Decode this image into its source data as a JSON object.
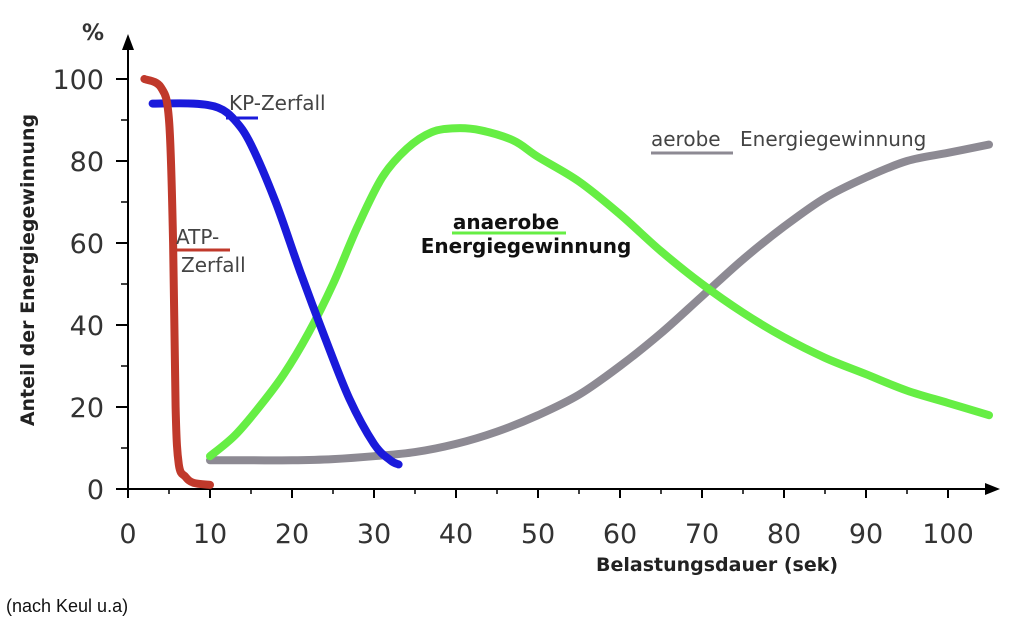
{
  "chart_data": {
    "type": "line",
    "xlabel": "Belastungsdauer (sek)",
    "ylabel": "Anteil der Energiegewinnung",
    "yunit": "%",
    "xlim": [
      0,
      105
    ],
    "ylim": [
      0,
      100
    ],
    "xticks": [
      0,
      10,
      20,
      30,
      40,
      50,
      60,
      70,
      80,
      90,
      100
    ],
    "yticks": [
      0,
      20,
      40,
      60,
      80,
      100
    ],
    "grid": false,
    "legend": "none",
    "series": [
      {
        "key": "atp",
        "color": "#c0392b",
        "x": [
          2,
          4,
          5,
          5.5,
          5.8,
          6.2,
          7,
          8,
          10
        ],
        "y": [
          100,
          98,
          90,
          60,
          20,
          6,
          3,
          1.5,
          1
        ]
      },
      {
        "key": "kp",
        "color": "#1a1adb",
        "x": [
          3,
          8,
          11,
          13,
          15,
          18,
          21,
          24,
          27,
          30,
          32,
          33
        ],
        "y": [
          94,
          94,
          93,
          90,
          84,
          70,
          53,
          37,
          22,
          11,
          7,
          6
        ]
      },
      {
        "key": "anaerob",
        "color": "#66ee44",
        "x": [
          10,
          13,
          16,
          19,
          22,
          25,
          28,
          31,
          34,
          37,
          40,
          43,
          47,
          50,
          55,
          60,
          65,
          70,
          75,
          80,
          85,
          90,
          95,
          100,
          105
        ],
        "y": [
          8,
          13,
          20,
          28,
          38,
          50,
          64,
          76,
          83,
          87,
          88,
          87.5,
          85,
          81,
          75,
          67,
          58,
          50,
          43,
          37,
          32,
          28,
          24,
          21,
          18
        ]
      },
      {
        "key": "aerob",
        "color": "#8d8a93",
        "x": [
          10,
          15,
          20,
          25,
          30,
          35,
          40,
          45,
          50,
          55,
          60,
          65,
          70,
          75,
          80,
          85,
          90,
          95,
          100,
          105
        ],
        "y": [
          7,
          7,
          7,
          7.3,
          8,
          9,
          11,
          14,
          18,
          23,
          30,
          38,
          47,
          56,
          64,
          71,
          76,
          80,
          82,
          84
        ]
      }
    ],
    "annotations": [
      {
        "key": "atp",
        "lines": [
          "ATP-",
          "Zerfall"
        ]
      },
      {
        "key": "kp",
        "text": "KP-Zerfall"
      },
      {
        "key": "anaerob",
        "lines": [
          "anaerobe",
          "Energiegewinnung"
        ]
      },
      {
        "key": "aerob",
        "word": "aerobe",
        "rest": "Energiegewinnung"
      }
    ]
  },
  "footer": {
    "source": "(nach Keul u.a)"
  }
}
